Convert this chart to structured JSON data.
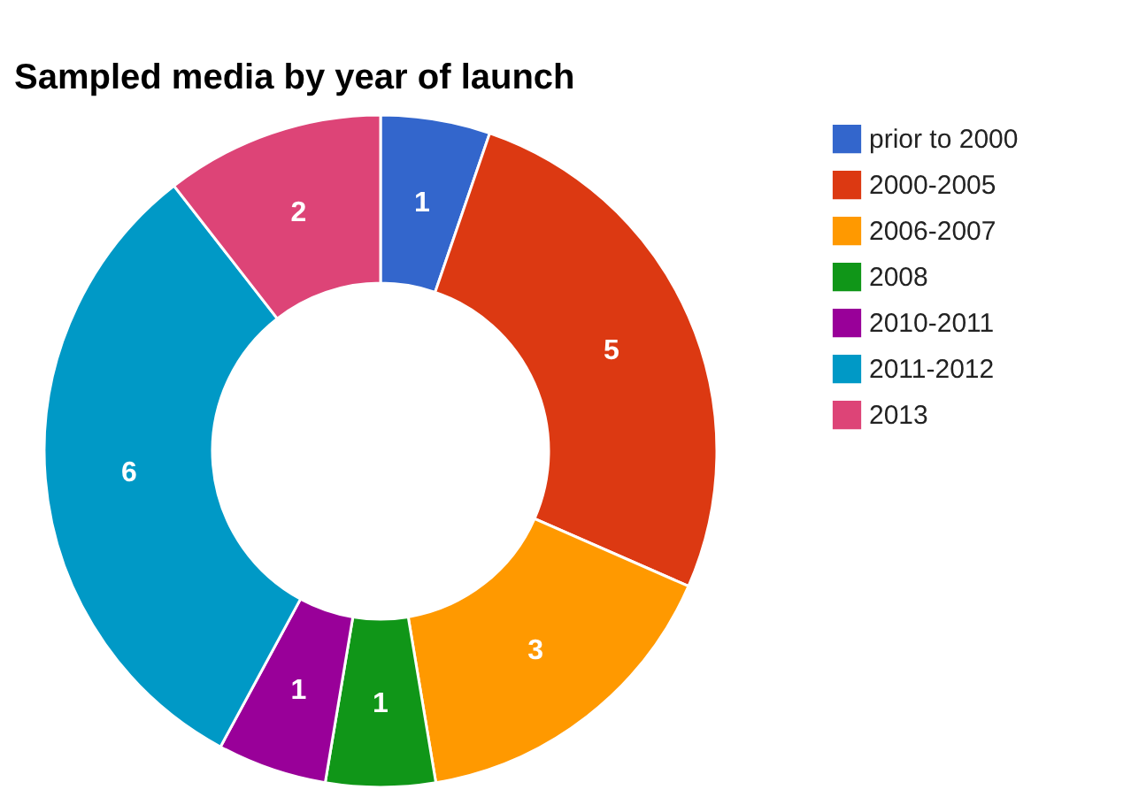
{
  "chart_data": {
    "type": "donut",
    "title": "Sampled media by year of launch",
    "categories": [
      "prior to 2000",
      "2000-2005",
      "2006-2007",
      "2008",
      "2010-2011",
      "2011-2012",
      "2013"
    ],
    "values": [
      1,
      5,
      3,
      1,
      1,
      6,
      2
    ],
    "colors": [
      "#3366cc",
      "#dc3912",
      "#ff9900",
      "#109618",
      "#990099",
      "#0099c6",
      "#dd4477"
    ],
    "data_labels": true,
    "legend": "right"
  }
}
